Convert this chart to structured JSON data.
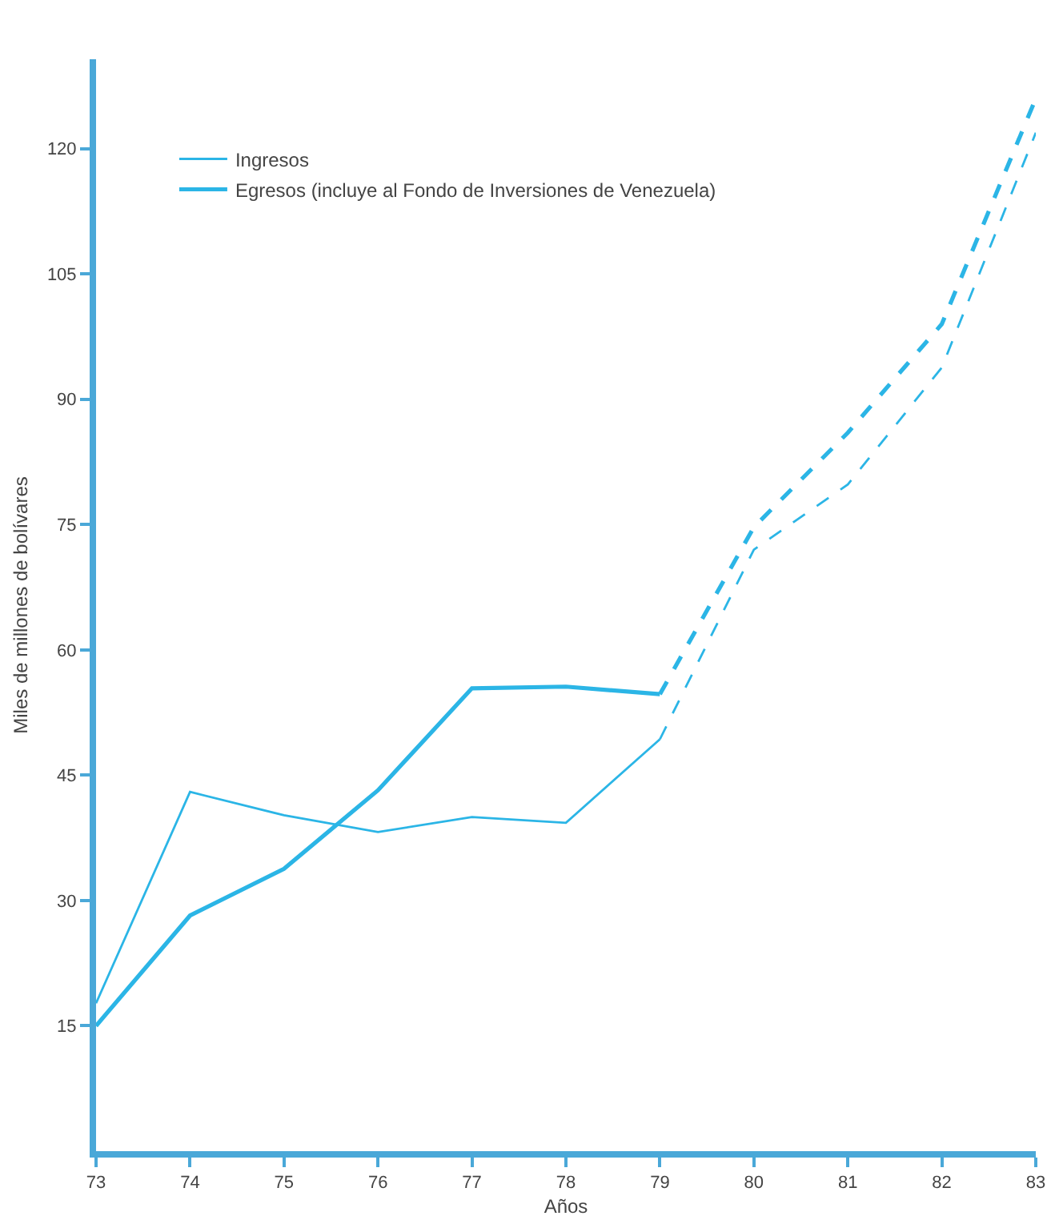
{
  "chart_data": {
    "type": "line",
    "xlabel": "Años",
    "ylabel": "Miles de millones de bolívares",
    "x": [
      73,
      74,
      75,
      76,
      77,
      78,
      79,
      80,
      81,
      82,
      83
    ],
    "series": [
      {
        "name": "Ingresos",
        "color": "#2bb5e6",
        "line_style": "solid",
        "values": [
          17.7,
          43.0,
          40.2,
          38.2,
          40.0,
          39.3,
          49.3,
          null,
          null,
          null,
          null
        ]
      },
      {
        "name": "Egresos (incluye al Fondo de Inversiones de Venezuela)",
        "color": "#2bb5e6",
        "line_style": "solid",
        "values": [
          15,
          28.2,
          33.8,
          43.2,
          55.4,
          55.6,
          54.7,
          null,
          null,
          null,
          null
        ]
      },
      {
        "color": "#2bb5e6",
        "line_style": "dashed",
        "values": [
          null,
          null,
          null,
          null,
          null,
          null,
          49.3,
          72.0,
          79.8,
          93.8,
          121.9
        ]
      },
      {
        "color": "#2bb5e6",
        "line_style": "dashed",
        "values": [
          null,
          null,
          null,
          null,
          null,
          null,
          54.7,
          74.7,
          86.0,
          99.0,
          126.0
        ]
      }
    ],
    "xlim": [
      73,
      83
    ],
    "xticks": [
      73,
      74,
      75,
      76,
      77,
      78,
      79,
      80,
      81,
      82,
      83
    ],
    "ylim": [
      0,
      130.7
    ],
    "yticks": [
      15,
      30,
      45,
      60,
      75,
      90,
      105,
      120
    ],
    "grid": false,
    "legend": "top left",
    "marker": "none"
  }
}
